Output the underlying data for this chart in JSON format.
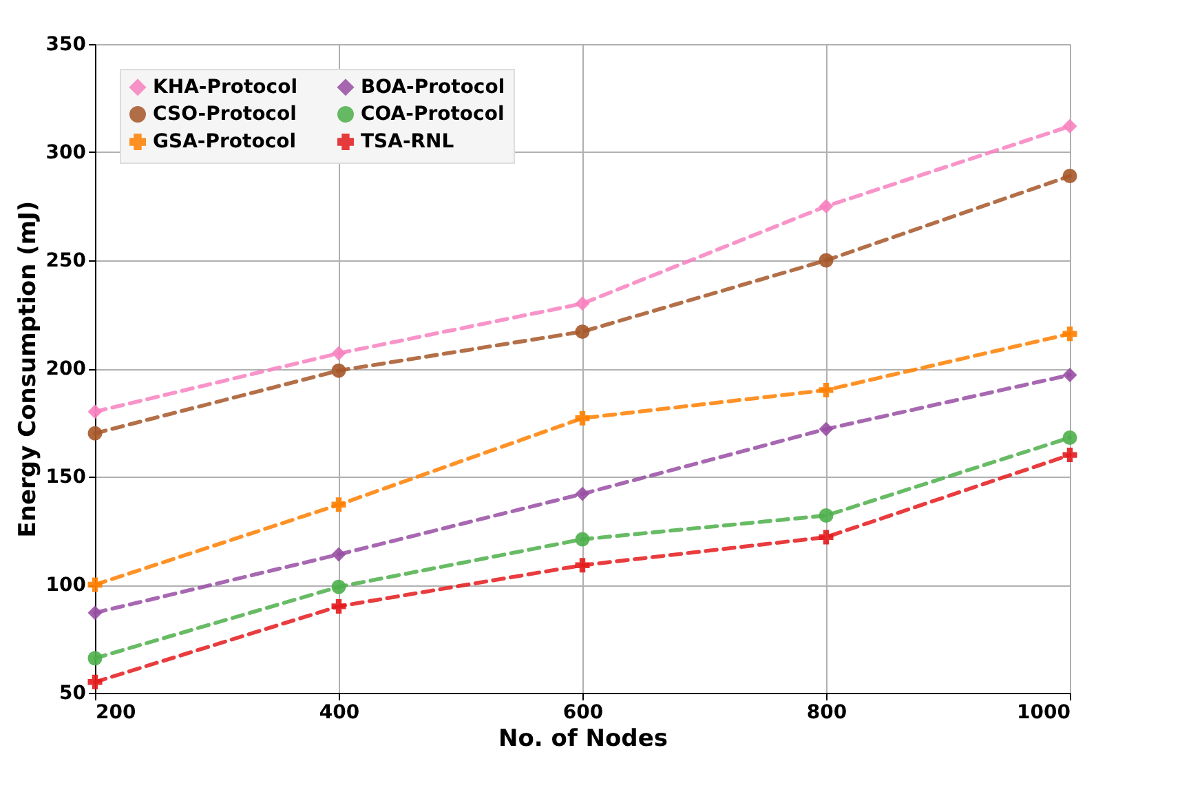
{
  "chart_data": {
    "type": "line",
    "xlabel": "No. of Nodes",
    "ylabel": "Energy Consumption (mJ)",
    "x": [
      200,
      400,
      600,
      800,
      1000
    ],
    "xlim": [
      200,
      1000
    ],
    "xticks": [
      200,
      400,
      600,
      800,
      1000
    ],
    "ylim": [
      50,
      350
    ],
    "yticks": [
      50,
      100,
      150,
      200,
      250,
      300,
      350
    ],
    "grid": true,
    "legend": "top left",
    "line_style": "dashed",
    "series": [
      {
        "name": "KHA-Protocol",
        "color": "#f781bf",
        "marker": "diamond",
        "values": [
          180,
          207,
          230,
          275,
          312
        ]
      },
      {
        "name": "CSO-Protocol",
        "color": "#a65628",
        "marker": "circle",
        "values": [
          170,
          199,
          217,
          250,
          289
        ]
      },
      {
        "name": "GSA-Protocol",
        "color": "#ff7f00",
        "marker": "cross",
        "values": [
          100,
          137,
          177,
          190,
          216
        ]
      },
      {
        "name": "BOA-Protocol",
        "color": "#984ea3",
        "marker": "diamond",
        "values": [
          87,
          114,
          142,
          172,
          197
        ]
      },
      {
        "name": "COA-Protocol",
        "color": "#4daf4a",
        "marker": "circle",
        "values": [
          66,
          99,
          121,
          132,
          168
        ]
      },
      {
        "name": "TSA-RNL",
        "color": "#e41a1c",
        "marker": "cross",
        "values": [
          55,
          90,
          109,
          122,
          160
        ]
      }
    ]
  }
}
